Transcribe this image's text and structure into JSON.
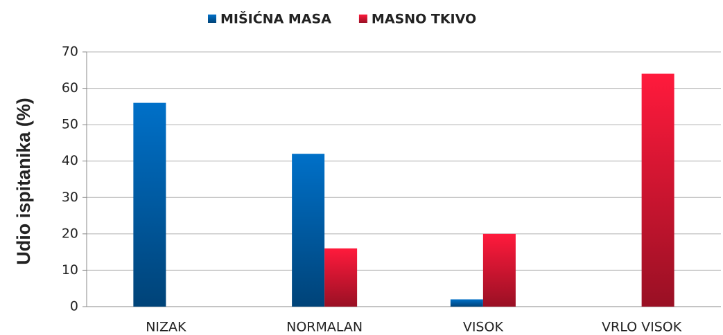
{
  "chart_data": {
    "type": "bar",
    "categories": [
      "NIZAK",
      "NORMALAN",
      "VISOK",
      "VRLO VISOK"
    ],
    "series": [
      {
        "name": "MIŠIĆNA MASA",
        "color": "#0070c8",
        "values": [
          56,
          42,
          2,
          0
        ]
      },
      {
        "name": "MASNO TKIVO",
        "color": "#ff1a3c",
        "values": [
          0,
          16,
          20,
          64
        ]
      }
    ],
    "y_label": "Udio ispitanika (%)",
    "ylim": [
      0,
      70
    ],
    "yticks": [
      0,
      10,
      20,
      30,
      40,
      50,
      60,
      70
    ],
    "grid": true,
    "legend": "top"
  }
}
